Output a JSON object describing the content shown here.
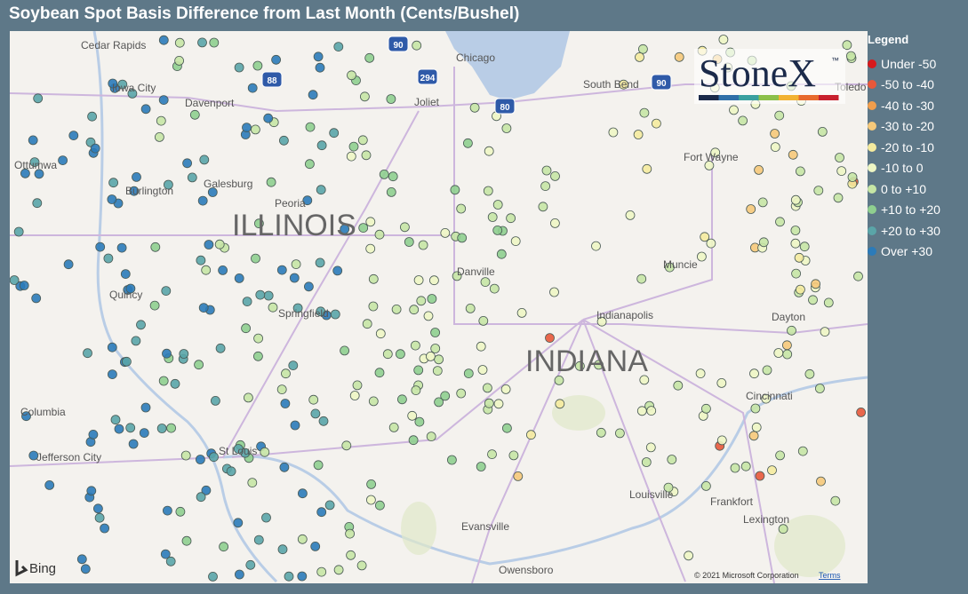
{
  "header": {
    "title": "Soybean Spot Basis Difference from Last Month (Cents/Bushel)"
  },
  "legend": {
    "title": "Legend",
    "items": [
      {
        "label": "Under -50",
        "color": "#d7191c"
      },
      {
        "label": "-50 to -40",
        "color": "#e8583a"
      },
      {
        "label": "-40 to -30",
        "color": "#f29e4c"
      },
      {
        "label": "-30 to -20",
        "color": "#f6c97a"
      },
      {
        "label": "-20 to -10",
        "color": "#f5eb9e"
      },
      {
        "label": "-10 to 0",
        "color": "#eef6c4"
      },
      {
        "label": "0 to +10",
        "color": "#c6e6a5"
      },
      {
        "label": "+10 to +20",
        "color": "#8fcf8f"
      },
      {
        "label": "+20 to +30",
        "color": "#5aa5a8"
      },
      {
        "label": "Over +30",
        "color": "#2b7bb9"
      }
    ]
  },
  "map": {
    "states": [
      "ILLINOIS",
      "INDIANA"
    ],
    "cities": [
      "Cedar Rapids",
      "Iowa City",
      "Davenport",
      "Ottumwa",
      "Burlington",
      "Galesburg",
      "Peoria",
      "Quincy",
      "Springfield",
      "Columbia",
      "Jefferson City",
      "St Louis",
      "Chicago",
      "Joliet",
      "South Bend",
      "Fort Wayne",
      "Danville",
      "Muncie",
      "Indianapolis",
      "Dayton",
      "Cincinnati",
      "Louisville",
      "Frankfort",
      "Lexington",
      "Evansville",
      "Owensboro",
      "Toledo"
    ],
    "highways": [
      "90",
      "294",
      "88",
      "80",
      "90"
    ],
    "logo": {
      "name": "StoneX",
      "mark": "™"
    },
    "provider": "Bing",
    "copyright": "© 2021 Microsoft Corporation",
    "terms": "Terms"
  }
}
